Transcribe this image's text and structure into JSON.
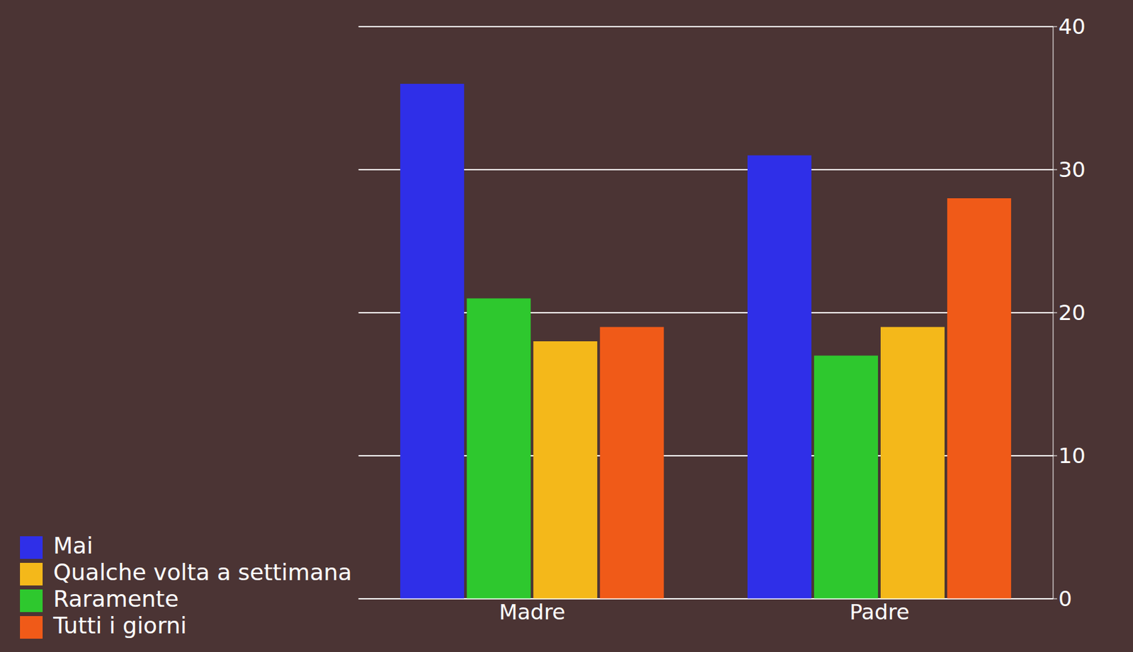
{
  "chart_data": {
    "type": "bar",
    "categories": [
      "Madre",
      "Padre"
    ],
    "series": [
      {
        "name": "Mai",
        "color": "#2f2fe8",
        "values": [
          36,
          31
        ]
      },
      {
        "name": "Raramente",
        "color": "#2ec82e",
        "values": [
          21,
          17
        ]
      },
      {
        "name": "Qualche volta a settimana",
        "color": "#f4b81a",
        "values": [
          18,
          19
        ]
      },
      {
        "name": "Tutti i giorni",
        "color": "#f05a18",
        "values": [
          19,
          28
        ]
      }
    ],
    "ylim": [
      0,
      40
    ],
    "yticks": [
      0,
      10,
      20,
      30,
      40
    ],
    "grid": true,
    "legend": "lower left"
  }
}
